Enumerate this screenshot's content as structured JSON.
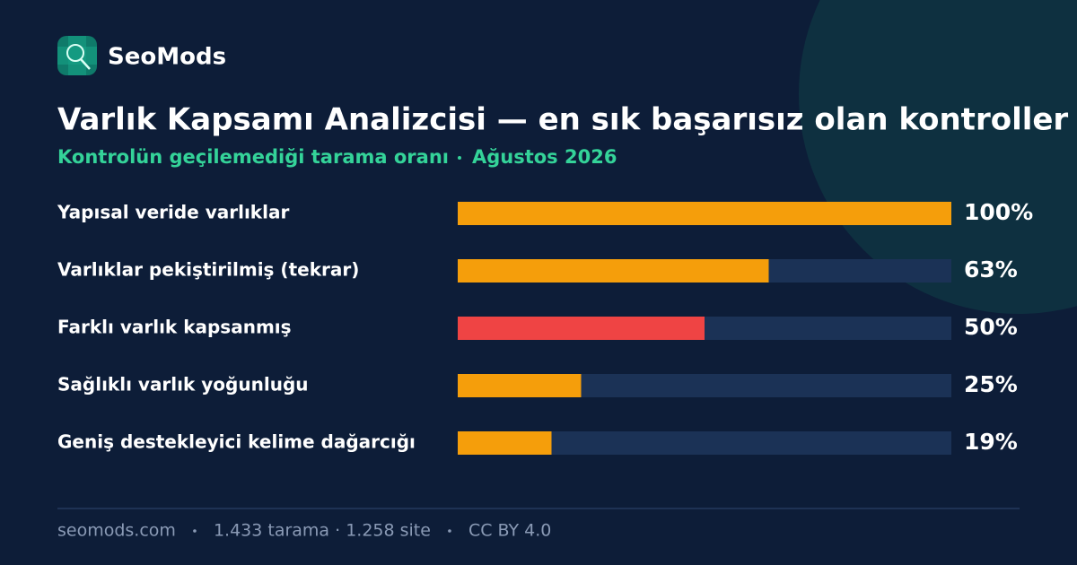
{
  "brand": "SeoMods",
  "chart_data": {
    "type": "bar",
    "orientation": "horizontal",
    "title": "Varlık Kapsamı Analizcisi — en sık başarısız olan kontroller",
    "subtitle": [
      "Kontrolün geçilemediği tarama oranı",
      "Ağustos 2026"
    ],
    "categories": [
      "Yapısal veride varlıklar",
      "Varlıklar pekiştirilmiş (tekrar)",
      "Farklı varlık kapsanmış",
      "Sağlıklı varlık yoğunluğu",
      "Geniş destekleyici kelime dağarcığı"
    ],
    "values": [
      100,
      63,
      50,
      25,
      19
    ],
    "value_labels": [
      "100%",
      "63%",
      "50%",
      "25%",
      "19%"
    ],
    "colors": [
      "#f59e0b",
      "#f59e0b",
      "#ef4444",
      "#f59e0b",
      "#f59e0b"
    ],
    "xlim": [
      0,
      100
    ]
  },
  "footer": [
    "seomods.com",
    "1.433 tarama · 1.258 site",
    "CC BY 4.0"
  ]
}
